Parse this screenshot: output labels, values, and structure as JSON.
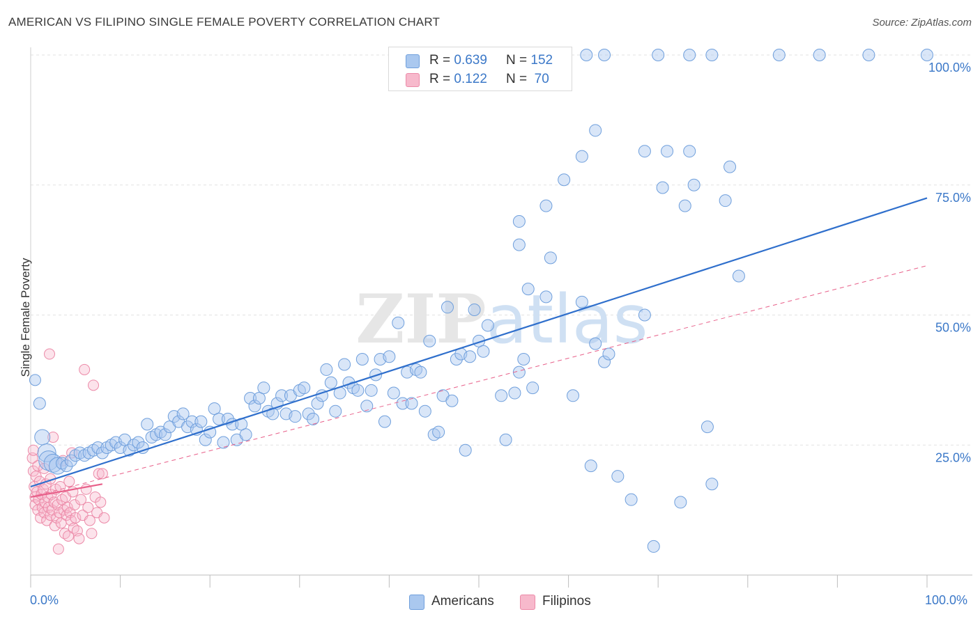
{
  "header": {
    "title": "AMERICAN VS FILIPINO SINGLE FEMALE POVERTY CORRELATION CHART",
    "source": "Source: ZipAtlas.com"
  },
  "legend_top": [
    {
      "r_label": "R =",
      "r_value": "0.639",
      "n_label": "N =",
      "n_value": "152"
    },
    {
      "r_label": "R =",
      "r_value": "0.122",
      "n_label": "N =",
      "n_value": "70"
    }
  ],
  "legend_bottom": [
    {
      "label": "Americans"
    },
    {
      "label": "Filipinos"
    }
  ],
  "colors": {
    "americans_fill": "#aac8ef",
    "americans_stroke": "#6f9fdc",
    "americans_line": "#2f6fcc",
    "filipinos_fill": "#f7b9cc",
    "filipinos_stroke": "#ec8aa8",
    "filipinos_line": "#e8608a",
    "tick_label": "#3b78c8"
  },
  "chart_data": {
    "type": "scatter",
    "title": "AMERICAN VS FILIPINO SINGLE FEMALE POVERTY CORRELATION CHART",
    "xlabel": "",
    "ylabel": "Single Female Poverty",
    "xlim": [
      0,
      100
    ],
    "ylim": [
      0,
      100
    ],
    "x_tick_labels": [
      "0.0%",
      "100.0%"
    ],
    "y_ticks": [
      25,
      50,
      75,
      100
    ],
    "y_tick_labels": [
      "25.0%",
      "50.0%",
      "75.0%",
      "100.0%"
    ],
    "grid": "horizontal dashed",
    "legend_placement": "top-center",
    "watermark": "ZIPatlas",
    "series": [
      {
        "name": "Americans",
        "r": 0.639,
        "n": 152,
        "trend": {
          "x": [
            0,
            100
          ],
          "y": [
            17.0,
            72.5
          ]
        },
        "points": [
          [
            0.5,
            37.5
          ],
          [
            1.0,
            33.0
          ],
          [
            1.3,
            26.5
          ],
          [
            1.8,
            23.5
          ],
          [
            2.0,
            22.0
          ],
          [
            2.5,
            21.5
          ],
          [
            3.0,
            21.0
          ],
          [
            3.5,
            21.5
          ],
          [
            4.0,
            21.0
          ],
          [
            4.5,
            22.0
          ],
          [
            5.0,
            23.0
          ],
          [
            5.5,
            23.5
          ],
          [
            6.0,
            23.0
          ],
          [
            6.5,
            23.5
          ],
          [
            7.0,
            24.0
          ],
          [
            7.5,
            24.5
          ],
          [
            8.0,
            23.5
          ],
          [
            8.5,
            24.5
          ],
          [
            9.0,
            25.0
          ],
          [
            9.5,
            25.5
          ],
          [
            10.0,
            24.5
          ],
          [
            10.5,
            26.0
          ],
          [
            11.0,
            24.0
          ],
          [
            11.5,
            25.0
          ],
          [
            12.0,
            25.5
          ],
          [
            12.5,
            24.5
          ],
          [
            13.0,
            29.0
          ],
          [
            13.5,
            26.5
          ],
          [
            14.0,
            27.0
          ],
          [
            14.5,
            27.5
          ],
          [
            15.0,
            27.0
          ],
          [
            15.5,
            28.5
          ],
          [
            16.0,
            30.5
          ],
          [
            16.5,
            29.5
          ],
          [
            17.0,
            31.0
          ],
          [
            17.5,
            28.5
          ],
          [
            18.0,
            29.5
          ],
          [
            18.5,
            28.0
          ],
          [
            19.0,
            29.5
          ],
          [
            19.5,
            26.0
          ],
          [
            20.0,
            27.5
          ],
          [
            20.5,
            32.0
          ],
          [
            21.0,
            30.0
          ],
          [
            21.5,
            25.5
          ],
          [
            22.0,
            30.0
          ],
          [
            22.5,
            29.0
          ],
          [
            23.0,
            26.0
          ],
          [
            23.5,
            29.0
          ],
          [
            24.0,
            27.0
          ],
          [
            24.5,
            34.0
          ],
          [
            25.0,
            32.5
          ],
          [
            25.5,
            34.0
          ],
          [
            26.0,
            36.0
          ],
          [
            26.5,
            31.5
          ],
          [
            27.0,
            31.0
          ],
          [
            27.5,
            33.0
          ],
          [
            28.0,
            34.5
          ],
          [
            28.5,
            31.0
          ],
          [
            29.0,
            34.5
          ],
          [
            29.5,
            30.5
          ],
          [
            30.0,
            35.5
          ],
          [
            30.5,
            36.0
          ],
          [
            31.0,
            31.0
          ],
          [
            31.5,
            30.0
          ],
          [
            32.0,
            33.0
          ],
          [
            32.5,
            34.5
          ],
          [
            33.0,
            39.5
          ],
          [
            33.5,
            37.0
          ],
          [
            34.0,
            31.5
          ],
          [
            34.5,
            35.0
          ],
          [
            35.0,
            40.5
          ],
          [
            35.5,
            37.0
          ],
          [
            36.0,
            36.0
          ],
          [
            36.5,
            35.5
          ],
          [
            37.0,
            41.5
          ],
          [
            37.5,
            32.5
          ],
          [
            38.0,
            35.5
          ],
          [
            38.5,
            38.5
          ],
          [
            39.0,
            41.5
          ],
          [
            39.5,
            29.5
          ],
          [
            40.0,
            42.0
          ],
          [
            40.5,
            35.0
          ],
          [
            41.0,
            48.5
          ],
          [
            41.5,
            33.0
          ],
          [
            42.0,
            39.0
          ],
          [
            42.5,
            33.0
          ],
          [
            43.0,
            39.5
          ],
          [
            43.5,
            39.0
          ],
          [
            44.0,
            31.5
          ],
          [
            44.5,
            45.0
          ],
          [
            45.0,
            27.0
          ],
          [
            45.5,
            27.5
          ],
          [
            46.0,
            34.5
          ],
          [
            46.5,
            51.5
          ],
          [
            47.0,
            33.5
          ],
          [
            47.5,
            41.5
          ],
          [
            48.0,
            42.5
          ],
          [
            48.5,
            24.0
          ],
          [
            49.0,
            42.0
          ],
          [
            49.5,
            51.0
          ],
          [
            50.0,
            45.0
          ],
          [
            50.5,
            43.0
          ],
          [
            51.0,
            48.0
          ],
          [
            52.5,
            34.5
          ],
          [
            53.0,
            26.0
          ],
          [
            54.0,
            35.0
          ],
          [
            54.5,
            39.0
          ],
          [
            55.0,
            41.5
          ],
          [
            55.5,
            55.0
          ],
          [
            56.0,
            36.0
          ],
          [
            57.5,
            53.5
          ],
          [
            58.0,
            61.0
          ],
          [
            60.5,
            34.5
          ],
          [
            61.5,
            52.5
          ],
          [
            62.5,
            21.0
          ],
          [
            63.0,
            44.5
          ],
          [
            64.0,
            41.0
          ],
          [
            64.5,
            42.5
          ],
          [
            65.5,
            19.0
          ],
          [
            67.0,
            14.5
          ],
          [
            68.5,
            50.0
          ],
          [
            69.5,
            5.5
          ],
          [
            70.5,
            74.5
          ],
          [
            71.0,
            81.5
          ],
          [
            72.5,
            14.0
          ],
          [
            73.0,
            71.0
          ],
          [
            75.5,
            28.5
          ],
          [
            76.0,
            17.5
          ],
          [
            78.0,
            78.5
          ],
          [
            79.0,
            57.5
          ],
          [
            54.5,
            63.5
          ],
          [
            54.5,
            68.0
          ],
          [
            57.5,
            71.0
          ],
          [
            59.5,
            76.0
          ],
          [
            61.5,
            80.5
          ],
          [
            63.0,
            85.5
          ],
          [
            68.5,
            81.5
          ],
          [
            73.5,
            81.5
          ],
          [
            74.0,
            75.0
          ],
          [
            77.5,
            72.0
          ],
          [
            56.0,
            100.0
          ],
          [
            62.0,
            100.0
          ],
          [
            64.0,
            100.0
          ],
          [
            70.0,
            100.0
          ],
          [
            73.5,
            100.0
          ],
          [
            76.0,
            100.0
          ],
          [
            83.5,
            100.0
          ],
          [
            88.0,
            100.0
          ],
          [
            93.5,
            100.0
          ],
          [
            100.0,
            100.0
          ]
        ]
      },
      {
        "name": "Filipinos",
        "r": 0.122,
        "n": 70,
        "trend": {
          "x": [
            0,
            8
          ],
          "y": [
            15.0,
            17.5
          ]
        },
        "trend_extended": {
          "x": [
            0,
            100
          ],
          "y": [
            15.0,
            59.5
          ]
        },
        "points": [
          [
            0.2,
            22.5
          ],
          [
            0.3,
            20.0
          ],
          [
            0.4,
            17.0
          ],
          [
            0.5,
            15.0
          ],
          [
            0.5,
            13.5
          ],
          [
            0.6,
            19.0
          ],
          [
            0.7,
            16.0
          ],
          [
            0.8,
            12.5
          ],
          [
            0.9,
            14.5
          ],
          [
            1.0,
            18.0
          ],
          [
            1.1,
            11.0
          ],
          [
            1.2,
            15.5
          ],
          [
            1.3,
            13.0
          ],
          [
            1.4,
            16.5
          ],
          [
            1.5,
            12.0
          ],
          [
            1.6,
            14.0
          ],
          [
            1.7,
            17.5
          ],
          [
            1.8,
            10.5
          ],
          [
            1.9,
            15.0
          ],
          [
            2.0,
            13.0
          ],
          [
            2.1,
            42.5
          ],
          [
            2.2,
            11.5
          ],
          [
            2.3,
            15.5
          ],
          [
            2.4,
            12.5
          ],
          [
            2.5,
            26.5
          ],
          [
            2.6,
            14.0
          ],
          [
            2.7,
            9.5
          ],
          [
            2.8,
            16.5
          ],
          [
            2.9,
            11.0
          ],
          [
            3.0,
            13.5
          ],
          [
            3.1,
            5.0
          ],
          [
            3.2,
            12.0
          ],
          [
            3.3,
            17.0
          ],
          [
            3.4,
            10.0
          ],
          [
            3.5,
            14.5
          ],
          [
            3.6,
            22.0
          ],
          [
            3.7,
            12.5
          ],
          [
            3.8,
            8.0
          ],
          [
            3.9,
            15.0
          ],
          [
            4.0,
            11.5
          ],
          [
            4.1,
            13.0
          ],
          [
            4.2,
            7.5
          ],
          [
            4.3,
            18.0
          ],
          [
            4.4,
            12.0
          ],
          [
            4.5,
            10.5
          ],
          [
            4.6,
            23.5
          ],
          [
            4.7,
            16.0
          ],
          [
            4.8,
            9.0
          ],
          [
            4.9,
            13.5
          ],
          [
            5.0,
            11.0
          ],
          [
            5.2,
            8.5
          ],
          [
            5.4,
            7.0
          ],
          [
            5.6,
            14.5
          ],
          [
            5.8,
            11.5
          ],
          [
            6.0,
            39.5
          ],
          [
            6.2,
            16.5
          ],
          [
            6.4,
            13.0
          ],
          [
            6.6,
            10.5
          ],
          [
            6.8,
            8.0
          ],
          [
            7.0,
            36.5
          ],
          [
            7.2,
            15.0
          ],
          [
            7.4,
            12.0
          ],
          [
            7.6,
            19.5
          ],
          [
            7.8,
            14.0
          ],
          [
            8.0,
            19.5
          ],
          [
            8.2,
            11.0
          ],
          [
            0.3,
            24.0
          ],
          [
            0.8,
            21.0
          ],
          [
            1.5,
            20.5
          ],
          [
            2.2,
            18.5
          ]
        ]
      }
    ]
  }
}
